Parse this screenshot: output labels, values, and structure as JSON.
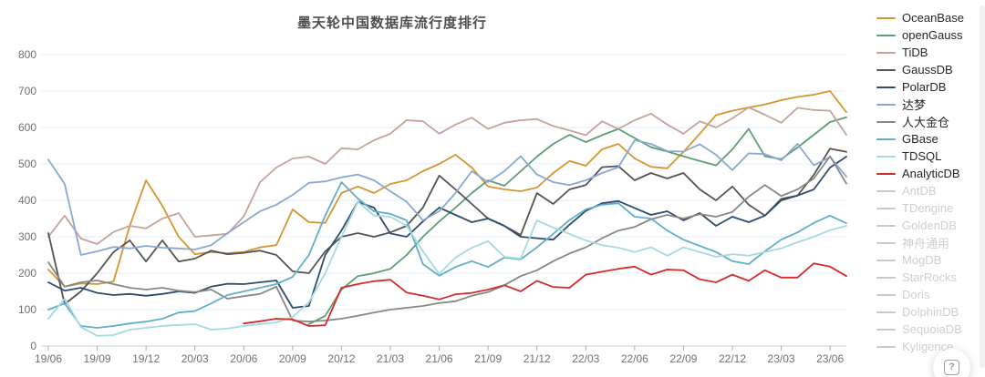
{
  "page": {
    "background": "#ffffff"
  },
  "help_button": {
    "label": "?"
  },
  "legend": {
    "active_label_color": "#262626",
    "inactive_color": "#cfcfcf",
    "inactive_swatch_color": "#c9c9c9"
  },
  "axis_style": {
    "grid_color": "#e3ecf8",
    "axis_line_color": "#cccccc",
    "tick_color": "#b0b0b0",
    "label_color": "#707070"
  },
  "chart_data": {
    "type": "line",
    "title": "墨天轮中国数据库流行度排行",
    "xlabel": "",
    "ylabel": "",
    "ylim": [
      0,
      800
    ],
    "y_ticks": [
      0,
      100,
      200,
      300,
      400,
      500,
      600,
      700,
      800
    ],
    "grid": true,
    "legend_position": "right",
    "x_tick_step": 3,
    "x": [
      "19/06",
      "19/07",
      "19/08",
      "19/09",
      "19/10",
      "19/11",
      "19/12",
      "20/01",
      "20/02",
      "20/03",
      "20/04",
      "20/05",
      "20/06",
      "20/07",
      "20/08",
      "20/09",
      "20/10",
      "20/11",
      "20/12",
      "21/01",
      "21/02",
      "21/03",
      "21/04",
      "21/05",
      "21/06",
      "21/07",
      "21/08",
      "21/09",
      "21/10",
      "21/11",
      "21/12",
      "22/01",
      "22/02",
      "22/03",
      "22/04",
      "22/05",
      "22/06",
      "22/07",
      "22/08",
      "22/09",
      "22/10",
      "22/11",
      "22/12",
      "23/01",
      "23/02",
      "23/03",
      "23/04",
      "23/05",
      "23/06",
      "23/07"
    ],
    "series": [
      {
        "name": "OceanBase",
        "color": "#d6962f",
        "active": true,
        "values": [
          210,
          163,
          172,
          170,
          177,
          330,
          455,
          385,
          300,
          252,
          258,
          255,
          258,
          271,
          277,
          375,
          340,
          338,
          420,
          438,
          420,
          445,
          455,
          480,
          500,
          525,
          490,
          438,
          430,
          425,
          435,
          475,
          508,
          495,
          540,
          555,
          515,
          492,
          488,
          533,
          583,
          634,
          646,
          655,
          663,
          675,
          684,
          690,
          700,
          642
        ]
      },
      {
        "name": "openGauss",
        "color": "#5d9e73",
        "active": true,
        "values": [
          null,
          null,
          null,
          null,
          null,
          null,
          null,
          null,
          null,
          null,
          null,
          null,
          null,
          null,
          null,
          null,
          60,
          83,
          155,
          192,
          200,
          212,
          250,
          300,
          342,
          380,
          420,
          455,
          440,
          480,
          520,
          555,
          580,
          560,
          579,
          596,
          571,
          546,
          534,
          521,
          508,
          496,
          540,
          596,
          521,
          513,
          545,
          580,
          615,
          628
        ]
      },
      {
        "name": "TiDB",
        "color": "#c6a39b",
        "active": true,
        "values": [
          300,
          358,
          295,
          280,
          313,
          330,
          323,
          350,
          365,
          300,
          304,
          308,
          356,
          450,
          490,
          515,
          520,
          500,
          543,
          540,
          565,
          583,
          620,
          617,
          583,
          608,
          627,
          596,
          613,
          620,
          623,
          604,
          592,
          579,
          617,
          596,
          620,
          638,
          608,
          583,
          617,
          600,
          625,
          655,
          635,
          613,
          654,
          648,
          646,
          580
        ]
      },
      {
        "name": "GaussDB",
        "color": "#545454",
        "active": true,
        "values": [
          310,
          115,
          150,
          200,
          258,
          290,
          232,
          290,
          232,
          240,
          262,
          252,
          256,
          262,
          250,
          205,
          200,
          260,
          300,
          310,
          300,
          312,
          330,
          380,
          468,
          430,
          390,
          350,
          330,
          305,
          420,
          390,
          430,
          442,
          491,
          494,
          455,
          475,
          460,
          475,
          430,
          400,
          438,
          388,
          358,
          404,
          413,
          470,
          542,
          533
        ]
      },
      {
        "name": "PolarDB",
        "color": "#2e4d6b",
        "active": true,
        "values": [
          175,
          152,
          160,
          146,
          140,
          143,
          138,
          143,
          150,
          146,
          163,
          171,
          170,
          175,
          180,
          105,
          110,
          250,
          317,
          396,
          380,
          309,
          300,
          342,
          380,
          360,
          340,
          350,
          330,
          300,
          296,
          292,
          333,
          371,
          392,
          398,
          379,
          360,
          370,
          345,
          365,
          330,
          355,
          340,
          358,
          400,
          413,
          430,
          490,
          520
        ]
      },
      {
        "name": "达梦",
        "color": "#8ba8d2",
        "active": true,
        "values": [
          512,
          445,
          250,
          260,
          272,
          268,
          275,
          270,
          268,
          265,
          277,
          310,
          340,
          370,
          388,
          415,
          448,
          452,
          463,
          471,
          455,
          425,
          396,
          345,
          370,
          420,
          480,
          450,
          480,
          521,
          471,
          450,
          442,
          455,
          475,
          491,
          565,
          555,
          535,
          534,
          554,
          525,
          483,
          529,
          527,
          510,
          555,
          496,
          519,
          465
        ]
      },
      {
        "name": "人大金仓",
        "color": "#888888",
        "active": true,
        "values": [
          230,
          163,
          175,
          180,
          170,
          160,
          155,
          160,
          152,
          148,
          155,
          130,
          137,
          143,
          163,
          70,
          67,
          70,
          75,
          83,
          92,
          100,
          105,
          110,
          118,
          123,
          138,
          148,
          167,
          192,
          208,
          233,
          254,
          271,
          296,
          317,
          327,
          348,
          360,
          350,
          362,
          355,
          368,
          410,
          442,
          412,
          430,
          460,
          521,
          446
        ]
      },
      {
        "name": "GBase",
        "color": "#62aecc",
        "active": true,
        "values": [
          100,
          117,
          55,
          50,
          55,
          62,
          67,
          75,
          92,
          96,
          117,
          140,
          150,
          160,
          170,
          190,
          250,
          358,
          450,
          405,
          370,
          363,
          345,
          225,
          193,
          217,
          233,
          217,
          243,
          238,
          271,
          308,
          346,
          375,
          388,
          392,
          355,
          350,
          317,
          292,
          275,
          258,
          233,
          225,
          260,
          292,
          312,
          338,
          358,
          337
        ]
      },
      {
        "name": "TDSQL",
        "color": "#a7dadf",
        "active": true,
        "values": [
          75,
          130,
          52,
          28,
          30,
          45,
          50,
          55,
          58,
          60,
          45,
          48,
          55,
          60,
          65,
          80,
          120,
          200,
          300,
          396,
          358,
          355,
          330,
          260,
          198,
          243,
          270,
          288,
          245,
          240,
          345,
          325,
          308,
          290,
          277,
          270,
          258,
          271,
          248,
          271,
          258,
          245,
          252,
          248,
          258,
          268,
          285,
          300,
          318,
          330
        ]
      },
      {
        "name": "AnalyticDB",
        "color": "#d22d2d",
        "active": true,
        "values": [
          null,
          null,
          null,
          null,
          null,
          null,
          null,
          null,
          null,
          null,
          null,
          null,
          62,
          68,
          75,
          73,
          55,
          57,
          160,
          170,
          178,
          182,
          147,
          138,
          128,
          142,
          146,
          155,
          167,
          150,
          179,
          162,
          160,
          196,
          204,
          212,
          218,
          196,
          210,
          208,
          183,
          175,
          196,
          179,
          208,
          188,
          188,
          227,
          218,
          192
        ]
      }
    ],
    "inactive_legend": [
      "AntDB",
      "TDengine",
      "GoldenDB",
      "神舟通用",
      "MogDB",
      "StarRocks",
      "Doris",
      "DolphinDB",
      "SequoiaDB",
      "Kyligence"
    ]
  }
}
